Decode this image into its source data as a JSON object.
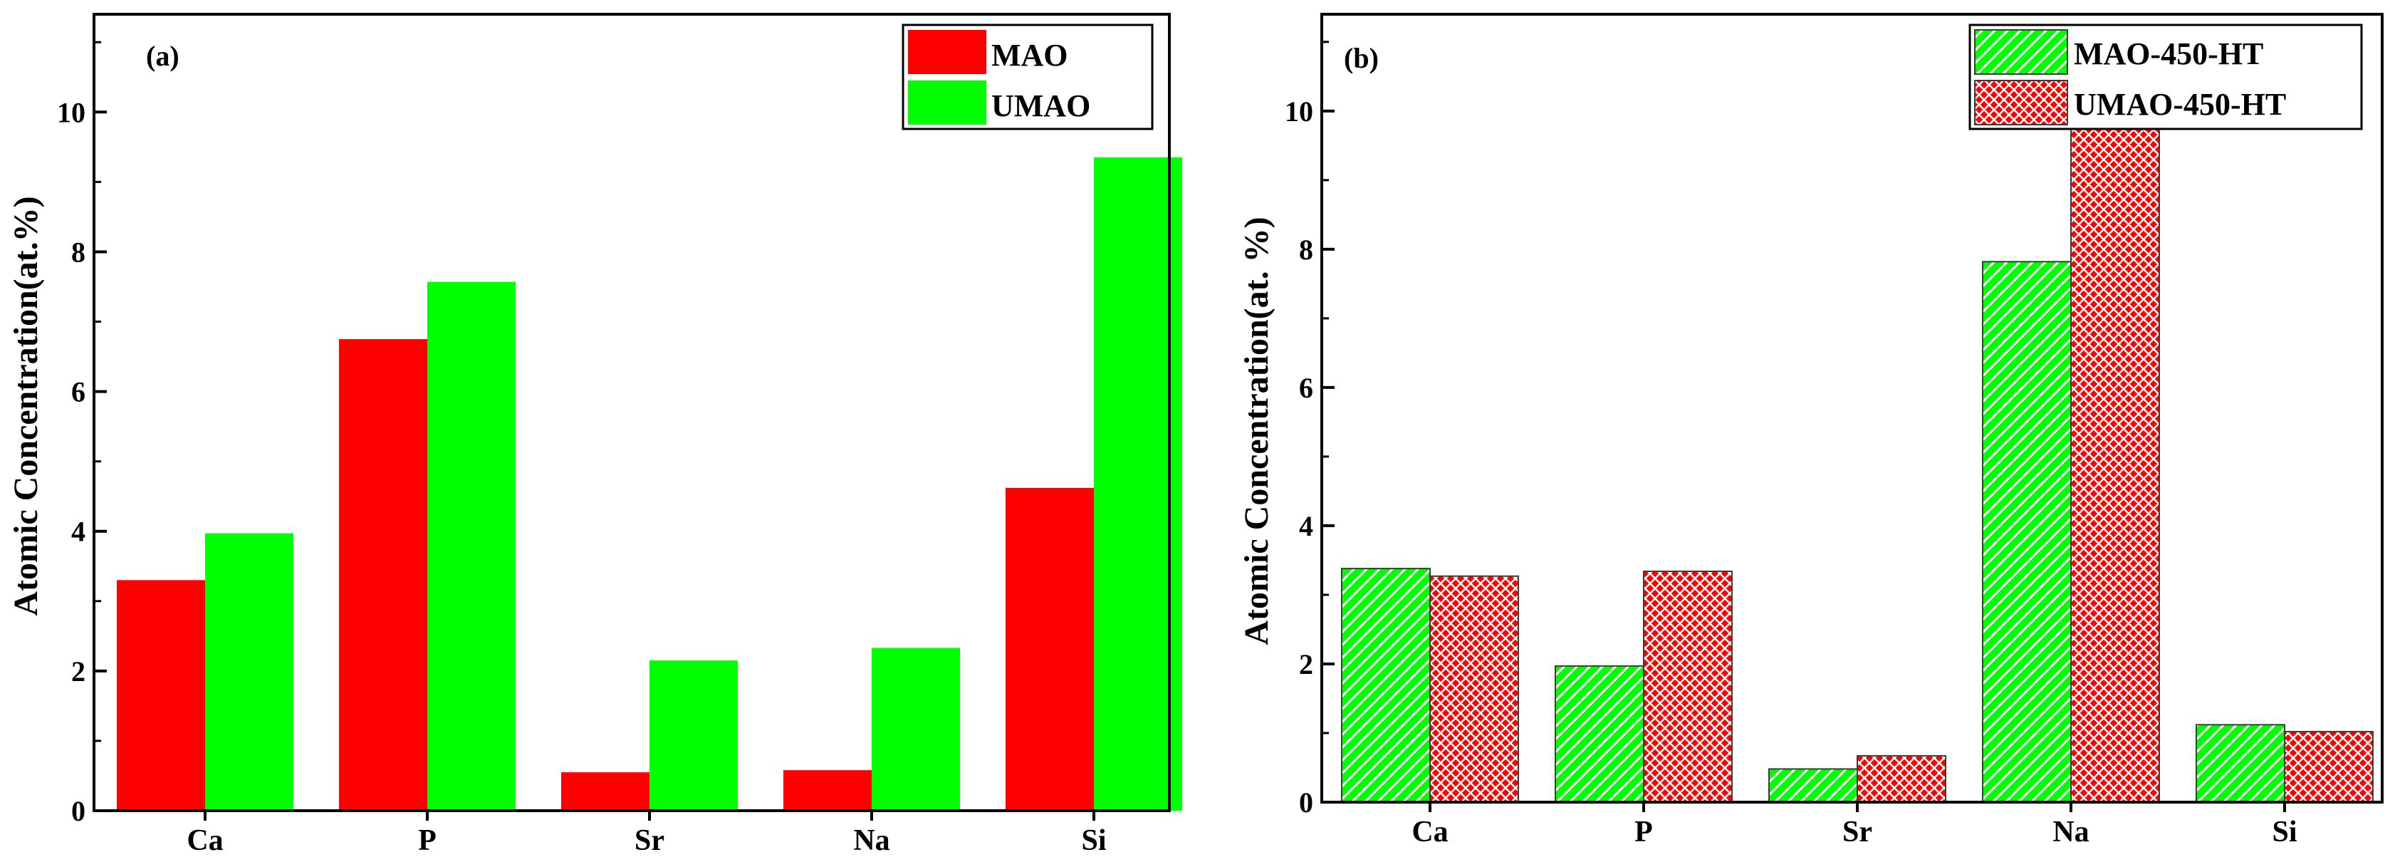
{
  "colors": {
    "red": "#ff0000",
    "green": "#00ff00",
    "axis": "#000000",
    "bar_outline": "#3a3a3a"
  },
  "chart_data": [
    {
      "panel_label": "(a)",
      "type": "bar",
      "title": "",
      "xlabel": "",
      "ylabel": "Atomic Concentration(at.%)",
      "categories": [
        "Ca",
        "P",
        "Sr",
        "Na",
        "Si"
      ],
      "ylim": [
        0,
        11.4
      ],
      "yticks": [
        0,
        2,
        4,
        6,
        8,
        10
      ],
      "ytick_labels": [
        "0",
        "2",
        "4",
        "6",
        "8",
        "10"
      ],
      "legend_position": "top-right",
      "series": [
        {
          "name": "MAO",
          "color": "#ff0000",
          "pattern": "solid",
          "values": [
            3.3,
            6.75,
            0.55,
            0.58,
            4.62
          ]
        },
        {
          "name": "UMAO",
          "color": "#00ff00",
          "pattern": "solid",
          "values": [
            3.97,
            7.57,
            2.15,
            2.33,
            9.35
          ]
        }
      ]
    },
    {
      "panel_label": "(b)",
      "type": "bar",
      "title": "",
      "xlabel": "",
      "ylabel": "Atomic Concentration(at. %)",
      "categories": [
        "Ca",
        "P",
        "Sr",
        "Na",
        "Si"
      ],
      "ylim": [
        0,
        11.4
      ],
      "yticks": [
        0,
        2,
        4,
        6,
        8,
        10
      ],
      "ytick_labels": [
        "0",
        "2",
        "4",
        "6",
        "8",
        "10"
      ],
      "legend_position": "top-right",
      "series": [
        {
          "name": "MAO-450-HT",
          "color": "#00ff00",
          "pattern": "diagonal",
          "values": [
            3.38,
            1.97,
            0.48,
            7.82,
            1.12
          ]
        },
        {
          "name": "UMAO-450-HT",
          "color": "#ff0000",
          "pattern": "crosshatch",
          "values": [
            3.27,
            3.34,
            0.67,
            9.75,
            1.02
          ]
        }
      ]
    }
  ]
}
